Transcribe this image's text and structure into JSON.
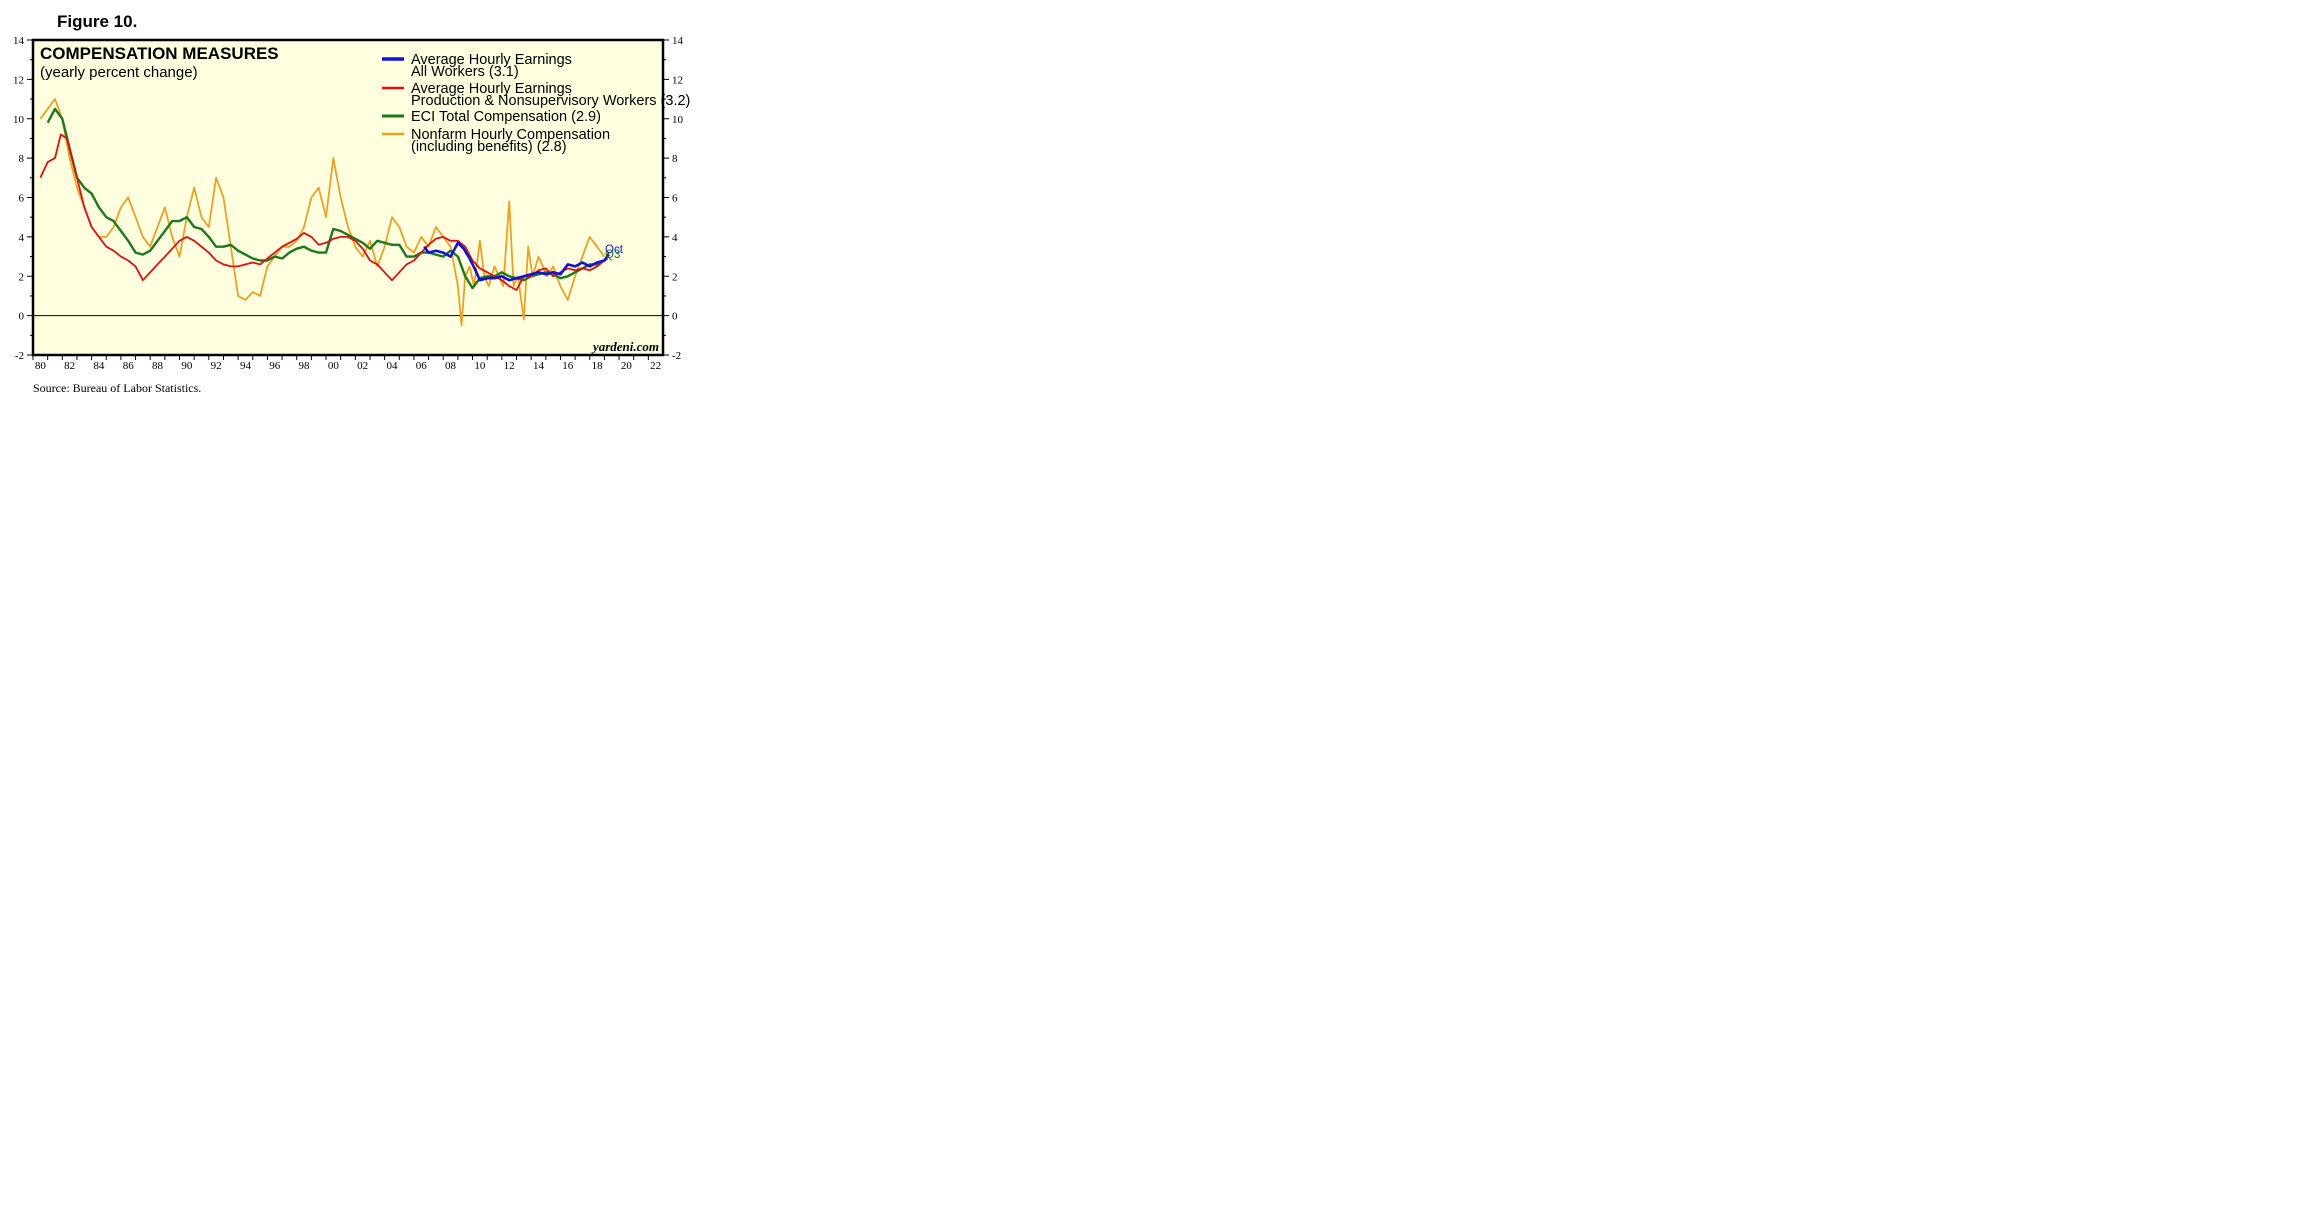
{
  "figure_label": "Figure 10.",
  "source": "Source: Bureau of Labor Statistics.",
  "watermark": "yardeni.com",
  "chart_data": {
    "type": "line",
    "title": "COMPENSATION MEASURES",
    "subtitle": "(yearly percent change)",
    "xlabel": "",
    "ylabel": "",
    "xlim": [
      1980,
      2022
    ],
    "ylim": [
      -2,
      14
    ],
    "y_ticks": [
      "-2",
      "0",
      "2",
      "4",
      "6",
      "8",
      "10",
      "12",
      "14"
    ],
    "x_ticks": [
      "80",
      "82",
      "84",
      "86",
      "88",
      "90",
      "92",
      "94",
      "96",
      "98",
      "00",
      "02",
      "04",
      "06",
      "08",
      "10",
      "12",
      "14",
      "16",
      "18",
      "20",
      "22"
    ],
    "grid": false,
    "background": "#ffffe0",
    "legend_position": "top-right",
    "end_labels": [
      "Oct",
      "Q3"
    ],
    "series": [
      {
        "name_line1": "Average Hourly Earnings",
        "name_line2": "All Workers (3.1)",
        "color": "#1010e0",
        "x": [
          2006.2,
          2006.5,
          2007.0,
          2007.5,
          2008.0,
          2008.5,
          2008.9,
          2009.3,
          2009.7,
          2010.0,
          2010.5,
          2011.0,
          2011.5,
          2012.0,
          2012.5,
          2013.0,
          2013.5,
          2014.0,
          2014.5,
          2015.0,
          2015.5,
          2016.0,
          2016.5,
          2017.0,
          2017.5,
          2018.0,
          2018.5,
          2018.8
        ],
        "values": [
          3.5,
          3.2,
          3.3,
          3.2,
          3.0,
          3.7,
          3.4,
          2.9,
          2.3,
          1.8,
          1.9,
          1.9,
          2.0,
          1.8,
          1.9,
          2.0,
          2.1,
          2.2,
          2.1,
          2.2,
          2.1,
          2.6,
          2.5,
          2.7,
          2.5,
          2.7,
          2.8,
          3.1
        ]
      },
      {
        "name_line1": "Average Hourly Earnings",
        "name_line2": "Production & Nonsupervisory Workers (3.2)",
        "color": "#e01010",
        "x": [
          1980.0,
          1980.5,
          1981.0,
          1981.4,
          1981.8,
          1982.0,
          1982.5,
          1983.0,
          1983.5,
          1984.0,
          1984.5,
          1985.0,
          1985.5,
          1986.0,
          1986.5,
          1987.0,
          1987.5,
          1988.0,
          1988.5,
          1989.0,
          1989.5,
          1990.0,
          1990.5,
          1991.0,
          1991.5,
          1992.0,
          1992.5,
          1993.0,
          1993.5,
          1994.0,
          1994.5,
          1995.0,
          1995.5,
          1996.0,
          1996.5,
          1997.0,
          1997.5,
          1998.0,
          1998.5,
          1999.0,
          1999.5,
          2000.0,
          2000.5,
          2001.0,
          2001.5,
          2002.0,
          2002.5,
          2003.0,
          2003.5,
          2004.0,
          2004.5,
          2005.0,
          2005.5,
          2006.0,
          2006.5,
          2007.0,
          2007.5,
          2008.0,
          2008.5,
          2009.0,
          2009.5,
          2010.0,
          2010.5,
          2011.0,
          2011.5,
          2012.0,
          2012.5,
          2013.0,
          2013.5,
          2014.0,
          2014.5,
          2015.0,
          2015.5,
          2016.0,
          2016.5,
          2017.0,
          2017.5,
          2018.0,
          2018.5,
          2018.8
        ],
        "values": [
          7.0,
          7.8,
          8.0,
          9.2,
          9.0,
          8.5,
          7.0,
          5.5,
          4.5,
          4.0,
          3.5,
          3.3,
          3.0,
          2.8,
          2.5,
          1.8,
          2.2,
          2.6,
          3.0,
          3.4,
          3.8,
          4.0,
          3.8,
          3.5,
          3.2,
          2.8,
          2.6,
          2.5,
          2.5,
          2.6,
          2.7,
          2.6,
          2.9,
          3.2,
          3.5,
          3.7,
          3.9,
          4.2,
          4.0,
          3.6,
          3.7,
          3.9,
          4.0,
          4.0,
          3.8,
          3.4,
          2.8,
          2.6,
          2.2,
          1.8,
          2.2,
          2.6,
          2.8,
          3.2,
          3.6,
          3.9,
          4.0,
          3.8,
          3.8,
          3.5,
          2.8,
          2.4,
          2.2,
          2.0,
          1.8,
          1.5,
          1.3,
          2.0,
          2.0,
          2.3,
          2.4,
          2.0,
          2.2,
          2.4,
          2.3,
          2.4,
          2.3,
          2.5,
          2.8,
          3.2
        ]
      },
      {
        "name_line1": "ECI Total Compensation (2.9)",
        "name_line2": "",
        "color": "#1a7a1a",
        "x": [
          1980.5,
          1981.0,
          1981.5,
          1982.0,
          1982.5,
          1983.0,
          1983.5,
          1984.0,
          1984.5,
          1985.0,
          1985.5,
          1986.0,
          1986.5,
          1987.0,
          1987.5,
          1988.0,
          1988.5,
          1989.0,
          1989.5,
          1990.0,
          1990.5,
          1991.0,
          1991.5,
          1992.0,
          1992.5,
          1993.0,
          1993.5,
          1994.0,
          1994.5,
          1995.0,
          1995.5,
          1996.0,
          1996.5,
          1997.0,
          1997.5,
          1998.0,
          1998.5,
          1999.0,
          1999.5,
          2000.0,
          2000.5,
          2001.0,
          2001.5,
          2002.0,
          2002.5,
          2003.0,
          2003.5,
          2004.0,
          2004.5,
          2005.0,
          2005.5,
          2006.0,
          2006.5,
          2007.0,
          2007.5,
          2008.0,
          2008.5,
          2009.0,
          2009.5,
          2010.0,
          2010.5,
          2011.0,
          2011.5,
          2012.0,
          2012.5,
          2013.0,
          2013.5,
          2014.0,
          2014.5,
          2015.0,
          2015.5,
          2016.0,
          2016.5,
          2017.0,
          2017.5,
          2018.0,
          2018.5,
          2018.7
        ],
        "values": [
          9.8,
          10.5,
          10.0,
          8.5,
          7.0,
          6.5,
          6.2,
          5.5,
          5.0,
          4.8,
          4.3,
          3.8,
          3.2,
          3.1,
          3.3,
          3.8,
          4.3,
          4.8,
          4.8,
          5.0,
          4.5,
          4.4,
          4.0,
          3.5,
          3.5,
          3.6,
          3.3,
          3.1,
          2.9,
          2.8,
          2.8,
          3.0,
          2.9,
          3.2,
          3.4,
          3.5,
          3.3,
          3.2,
          3.2,
          4.4,
          4.3,
          4.1,
          3.9,
          3.7,
          3.4,
          3.8,
          3.7,
          3.6,
          3.6,
          3.0,
          3.0,
          3.2,
          3.2,
          3.1,
          3.0,
          3.3,
          3.0,
          2.0,
          1.4,
          1.9,
          2.0,
          2.0,
          2.2,
          2.0,
          1.9,
          1.8,
          2.0,
          2.1,
          2.2,
          2.1,
          1.9,
          2.0,
          2.2,
          2.4,
          2.6,
          2.6,
          2.8,
          2.9
        ]
      },
      {
        "name_line1": "Nonfarm Hourly Compensation",
        "name_line2": "(including benefits) (2.8)",
        "color": "#f0a020",
        "x": [
          1980.0,
          1980.5,
          1981.0,
          1981.5,
          1982.0,
          1982.5,
          1983.0,
          1983.5,
          1984.0,
          1984.5,
          1985.0,
          1985.5,
          1986.0,
          1986.5,
          1987.0,
          1987.5,
          1988.0,
          1988.5,
          1989.0,
          1989.5,
          1990.0,
          1990.5,
          1991.0,
          1991.5,
          1992.0,
          1992.5,
          1993.0,
          1993.5,
          1994.0,
          1994.5,
          1995.0,
          1995.5,
          1996.0,
          1996.5,
          1997.0,
          1997.5,
          1998.0,
          1998.5,
          1999.0,
          1999.5,
          2000.0,
          2000.5,
          2001.0,
          2001.5,
          2002.0,
          2002.5,
          2003.0,
          2003.5,
          2004.0,
          2004.5,
          2005.0,
          2005.5,
          2006.0,
          2006.5,
          2007.0,
          2007.5,
          2008.0,
          2008.5,
          2008.75,
          2009.0,
          2009.3,
          2009.6,
          2010.0,
          2010.3,
          2010.6,
          2011.0,
          2011.3,
          2011.6,
          2012.0,
          2012.3,
          2012.6,
          2013.0,
          2013.3,
          2013.6,
          2014.0,
          2014.3,
          2014.6,
          2015.0,
          2015.5,
          2016.0,
          2016.5,
          2017.0,
          2017.5,
          2018.0,
          2018.5
        ],
        "values": [
          10.0,
          10.5,
          11.0,
          10.0,
          8.0,
          6.5,
          5.5,
          4.5,
          4.0,
          4.0,
          4.5,
          5.5,
          6.0,
          5.0,
          4.0,
          3.5,
          4.5,
          5.5,
          4.0,
          3.0,
          5.0,
          6.5,
          5.0,
          4.5,
          7.0,
          6.0,
          3.5,
          1.0,
          0.8,
          1.2,
          1.0,
          2.5,
          3.0,
          3.5,
          3.5,
          3.8,
          4.5,
          6.0,
          6.5,
          5.0,
          8.0,
          6.0,
          4.5,
          3.5,
          3.0,
          3.8,
          2.5,
          3.5,
          5.0,
          4.5,
          3.5,
          3.2,
          4.0,
          3.5,
          4.5,
          4.0,
          3.5,
          1.5,
          -0.5,
          2.0,
          2.5,
          1.5,
          3.8,
          2.0,
          1.5,
          2.5,
          2.0,
          1.5,
          5.8,
          1.5,
          2.0,
          -0.2,
          3.5,
          2.0,
          3.0,
          2.5,
          2.0,
          2.5,
          1.5,
          0.8,
          2.0,
          3.0,
          4.0,
          3.5,
          3.0
        ]
      }
    ]
  }
}
